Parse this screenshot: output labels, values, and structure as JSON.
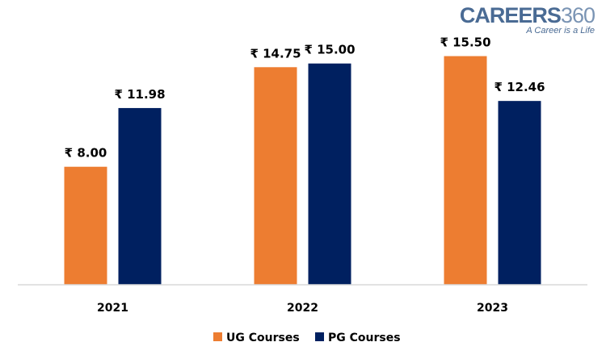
{
  "logo": {
    "brand": "CAREERS",
    "number": "360",
    "tagline": "A Career is a Life"
  },
  "colors": {
    "ug": "#ED7D31",
    "pg": "#002060",
    "axis": "#D9D9D9",
    "text": "#000000"
  },
  "chart_data": {
    "type": "bar",
    "title": "",
    "xlabel": "",
    "ylabel": "",
    "categories": [
      "2021",
      "2022",
      "2023"
    ],
    "series": [
      {
        "name": "UG Courses",
        "values": [
          8.0,
          14.75,
          15.5
        ],
        "labels": [
          "₹ 8.00",
          "₹ 14.75",
          "₹ 15.50"
        ]
      },
      {
        "name": "PG Courses",
        "values": [
          11.98,
          15.0,
          12.46
        ],
        "labels": [
          "₹ 11.98",
          "₹ 15.00",
          "₹ 12.46"
        ]
      }
    ],
    "ylim": [
      0,
      17.5
    ],
    "grid": false,
    "legend": "bottom"
  }
}
